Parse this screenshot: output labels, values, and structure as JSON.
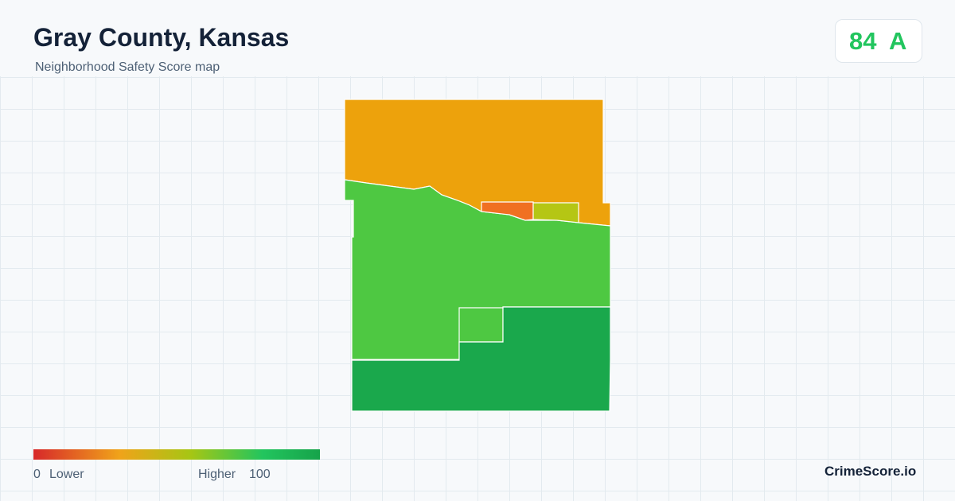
{
  "header": {
    "title": "Gray County, Kansas",
    "subtitle": "Neighborhood Safety Score map"
  },
  "score": {
    "value": "84",
    "grade": "A"
  },
  "legend": {
    "min": "0",
    "low_label": "Lower",
    "high_label": "Higher",
    "max": "100"
  },
  "brand": "CrimeScore.io"
}
